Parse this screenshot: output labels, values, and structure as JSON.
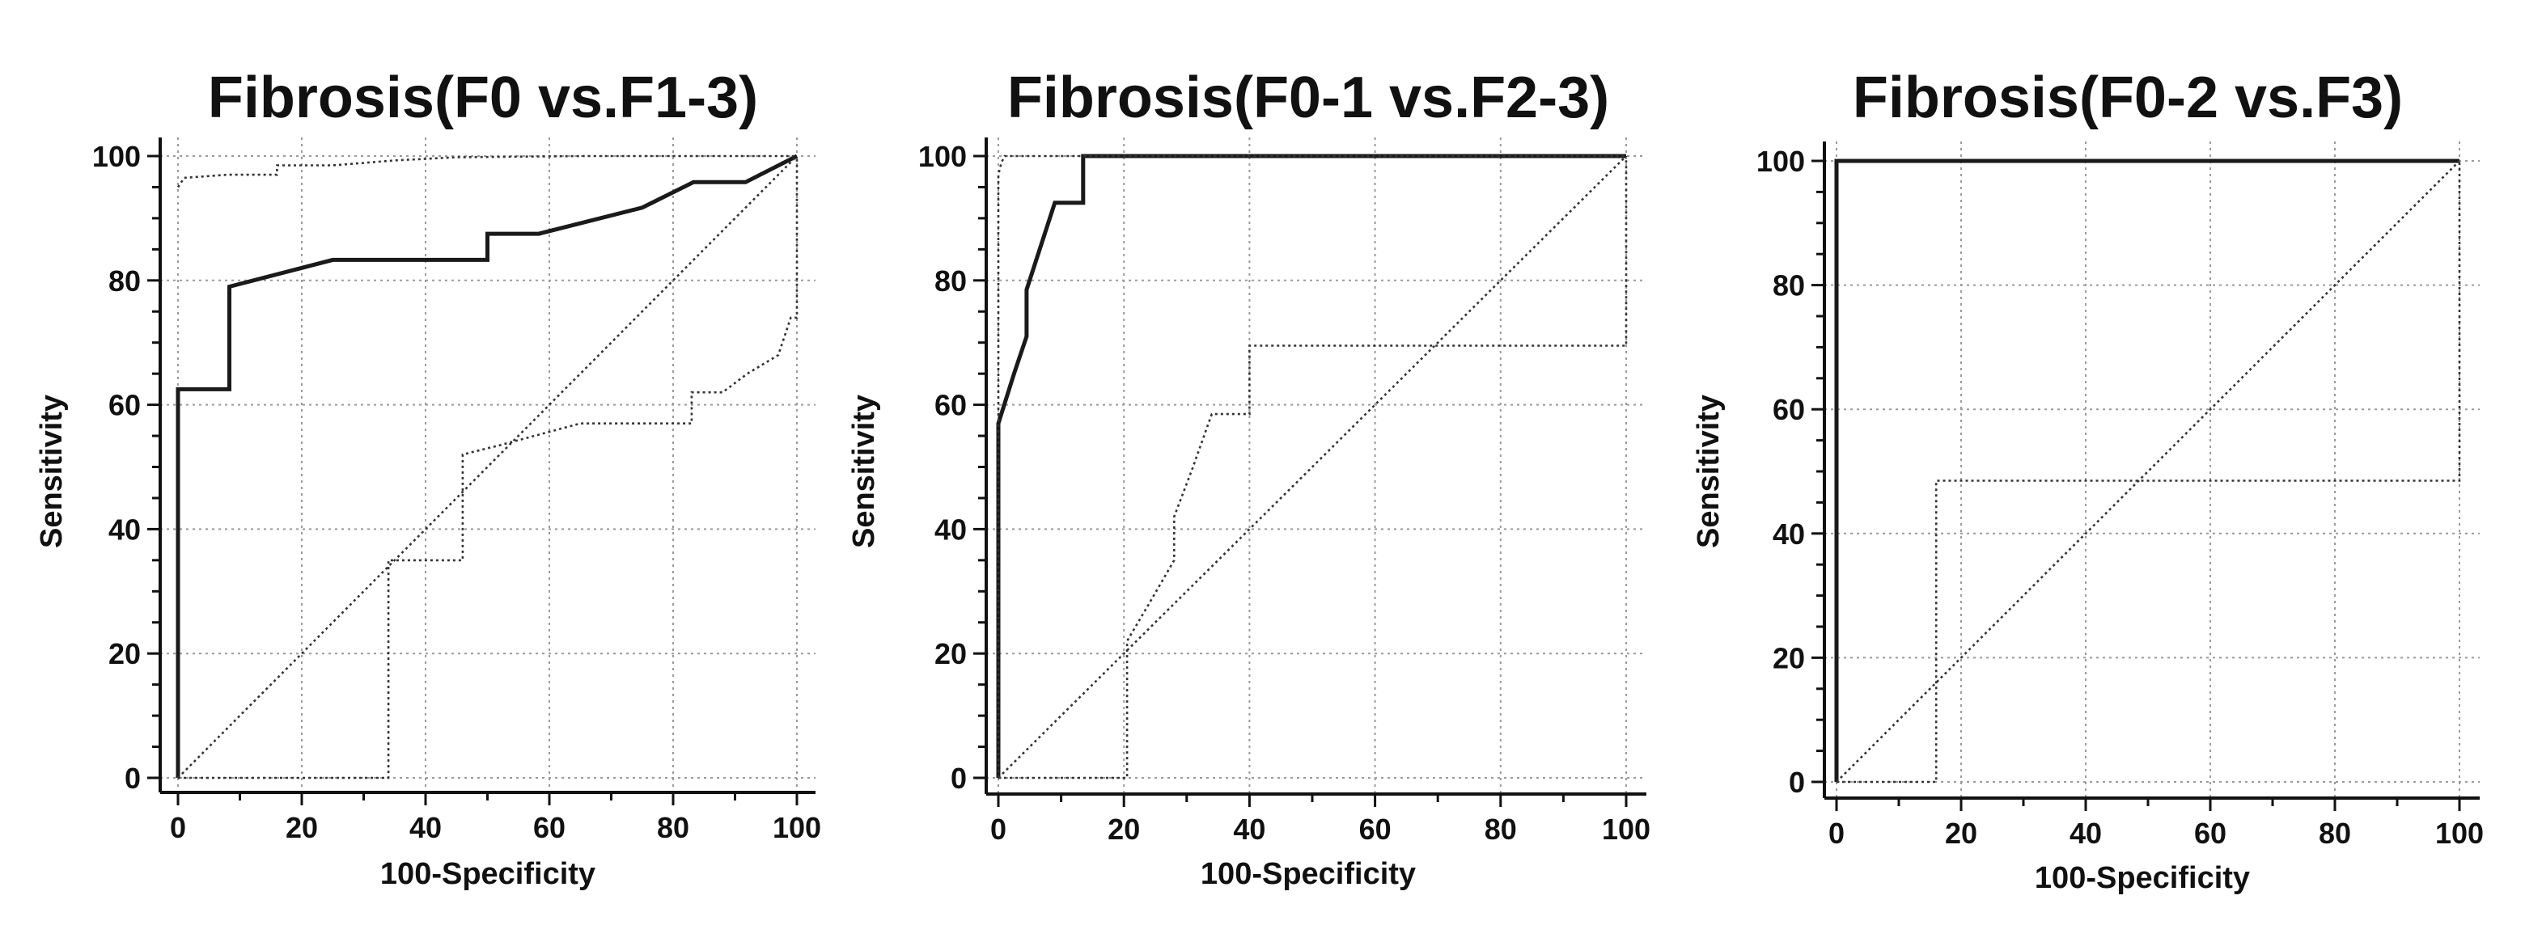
{
  "chart_data": [
    {
      "type": "line",
      "title": "Fibrosis(F0 vs.F1-3)",
      "xlabel": "100-Specificity",
      "ylabel": "Sensitivity",
      "xlim": [
        0,
        100
      ],
      "ylim": [
        0,
        100
      ],
      "xticks": [
        0,
        20,
        40,
        60,
        80,
        100
      ],
      "yticks": [
        0,
        20,
        40,
        60,
        80,
        100
      ],
      "grid": true,
      "series": [
        {
          "role": "roc",
          "style": "solid",
          "points": [
            [
              0,
              0
            ],
            [
              0,
              62.5
            ],
            [
              8.3,
              62.5
            ],
            [
              8.3,
              79
            ],
            [
              25,
              83.3
            ],
            [
              50,
              83.3
            ],
            [
              50,
              87.5
            ],
            [
              58.3,
              87.5
            ],
            [
              75,
              91.7
            ],
            [
              83.3,
              95.8
            ],
            [
              91.7,
              95.8
            ],
            [
              100,
              100
            ]
          ]
        },
        {
          "role": "ci_upper",
          "style": "dotted",
          "points": [
            [
              0,
              95
            ],
            [
              1,
              96.5
            ],
            [
              8,
              97
            ],
            [
              16,
              97
            ],
            [
              16,
              98.5
            ],
            [
              25,
              98.5
            ],
            [
              35,
              99.3
            ],
            [
              45,
              99.8
            ],
            [
              65,
              100
            ],
            [
              100,
              100
            ]
          ]
        },
        {
          "role": "ci_lower",
          "style": "dotted",
          "points": [
            [
              0,
              0
            ],
            [
              34,
              0
            ],
            [
              34,
              35
            ],
            [
              46,
              35
            ],
            [
              46,
              52
            ],
            [
              52,
              53.5
            ],
            [
              65,
              57
            ],
            [
              83,
              57
            ],
            [
              83,
              62
            ],
            [
              88,
              62
            ],
            [
              92,
              65
            ],
            [
              97,
              68
            ],
            [
              99,
              74
            ],
            [
              100,
              74
            ],
            [
              100,
              100
            ]
          ]
        },
        {
          "role": "reference",
          "style": "dotted",
          "points": [
            [
              0,
              0
            ],
            [
              100,
              100
            ]
          ]
        }
      ]
    },
    {
      "type": "line",
      "title": "Fibrosis(F0-1 vs.F2-3)",
      "xlabel": "100-Specificity",
      "ylabel": "Sensitivity",
      "xlim": [
        0,
        100
      ],
      "ylim": [
        0,
        100
      ],
      "xticks": [
        0,
        20,
        40,
        60,
        80,
        100
      ],
      "yticks": [
        0,
        20,
        40,
        60,
        80,
        100
      ],
      "grid": true,
      "series": [
        {
          "role": "roc",
          "style": "solid",
          "points": [
            [
              0,
              0
            ],
            [
              0,
              57
            ],
            [
              2.5,
              65
            ],
            [
              4.5,
              71
            ],
            [
              4.5,
              78.5
            ],
            [
              9,
              92.5
            ],
            [
              13.5,
              92.5
            ],
            [
              13.5,
              100
            ],
            [
              100,
              100
            ]
          ]
        },
        {
          "role": "ci_upper",
          "style": "dotted",
          "points": [
            [
              0,
              0
            ],
            [
              0,
              97
            ],
            [
              0.5,
              99
            ],
            [
              1,
              100
            ],
            [
              100,
              100
            ]
          ]
        },
        {
          "role": "ci_lower",
          "style": "dotted",
          "points": [
            [
              0,
              0
            ],
            [
              20.5,
              0
            ],
            [
              20.5,
              22
            ],
            [
              24,
              28
            ],
            [
              28,
              35
            ],
            [
              28,
              42
            ],
            [
              31,
              50
            ],
            [
              34,
              58.5
            ],
            [
              40,
              58.5
            ],
            [
              40,
              69.5
            ],
            [
              100,
              69.5
            ],
            [
              100,
              100
            ]
          ]
        },
        {
          "role": "reference",
          "style": "dotted",
          "points": [
            [
              0,
              0
            ],
            [
              100,
              100
            ]
          ]
        }
      ]
    },
    {
      "type": "line",
      "title": "Fibrosis(F0-2 vs.F3)",
      "xlabel": "100-Specificity",
      "ylabel": "Sensitivity",
      "xlim": [
        0,
        100
      ],
      "ylim": [
        0,
        100
      ],
      "xticks": [
        0,
        20,
        40,
        60,
        80,
        100
      ],
      "yticks": [
        0,
        20,
        40,
        60,
        80,
        100
      ],
      "grid": true,
      "series": [
        {
          "role": "roc",
          "style": "solid",
          "points": [
            [
              0,
              0
            ],
            [
              0,
              100
            ],
            [
              100,
              100
            ]
          ]
        },
        {
          "role": "ci_lower",
          "style": "dotted",
          "points": [
            [
              0,
              0
            ],
            [
              16,
              0
            ],
            [
              16,
              48.5
            ],
            [
              100,
              48.5
            ],
            [
              100,
              100
            ]
          ]
        },
        {
          "role": "reference",
          "style": "dotted",
          "points": [
            [
              0,
              0
            ],
            [
              100,
              100
            ]
          ]
        }
      ]
    }
  ]
}
